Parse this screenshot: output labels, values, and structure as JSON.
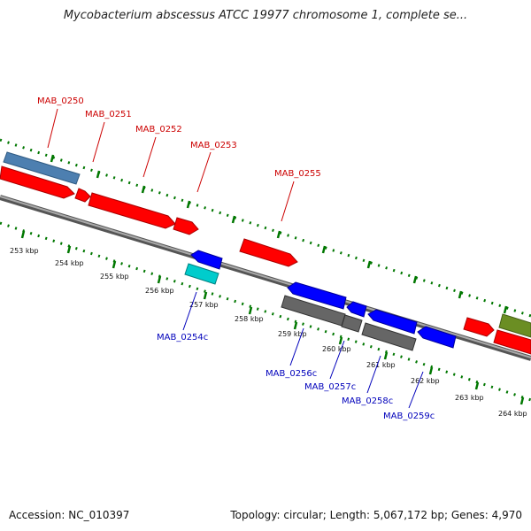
{
  "header": {
    "title": "Mycobacterium abscessus ATCC 19977 chromosome 1, complete se..."
  },
  "footer": {
    "accession": "Accession: NC_010397",
    "summary": "Topology: circular; Length: 5,067,172 bp; Genes: 4,970"
  },
  "colors": {
    "forward_cds": "#ff0000",
    "reverse_cds": "#0000ff",
    "forward_gene": "#4d7fb0",
    "reverse_gene": "#666666",
    "rna": "#00cccc",
    "other": "#6b8e23",
    "backbone": "#888888",
    "ticks": "#007700",
    "forward_label": "#cc0000",
    "reverse_label": "#0000bb"
  },
  "ruler": {
    "ticks": [
      "253 kbp",
      "254 kbp",
      "255 kbp",
      "256 kbp",
      "257 kbp",
      "258 kbp",
      "259 kbp",
      "260 kbp",
      "261 kbp",
      "262 kbp",
      "263 kbp",
      "264 kbp"
    ]
  },
  "gene_labels": {
    "forward": [
      "MAB_0250",
      "MAB_0251",
      "MAB_0252",
      "MAB_0253",
      "MAB_0255"
    ],
    "reverse": [
      "MAB_0254c",
      "MAB_0256c",
      "MAB_0257c",
      "MAB_0258c",
      "MAB_0259c"
    ]
  }
}
